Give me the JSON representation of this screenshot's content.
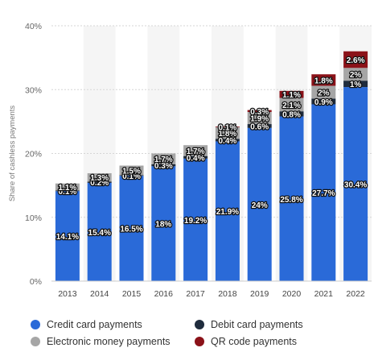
{
  "chart_data": {
    "type": "bar",
    "stacked": true,
    "categories": [
      "2013",
      "2014",
      "2015",
      "2016",
      "2017",
      "2018",
      "2019",
      "2020",
      "2021",
      "2022"
    ],
    "ylabel": "Share of cashless payments",
    "ylim": [
      0,
      40
    ],
    "yticks": [
      "0%",
      "10%",
      "20%",
      "30%",
      "40%"
    ],
    "grid": true,
    "legend_position": "bottom",
    "series": [
      {
        "name": "Credit card payments",
        "color": "#2a6ad8",
        "values": [
          14.1,
          15.4,
          16.5,
          18,
          19.2,
          21.9,
          24,
          25.8,
          27.7,
          30.4
        ],
        "labels": [
          "14.1%",
          "15.4%",
          "16.5%",
          "18%",
          "19.2%",
          "21.9%",
          "24%",
          "25.8%",
          "27.7%",
          "30.4%"
        ]
      },
      {
        "name": "Debit card payments",
        "color": "#1f2c3d",
        "values": [
          0.1,
          0.2,
          0.1,
          0.3,
          0.4,
          0.4,
          0.6,
          0.8,
          0.9,
          1
        ],
        "labels": [
          "0.1%",
          "0.2%",
          "0.1%",
          "0.3%",
          "0.4%",
          "0.4%",
          "0.6%",
          "0.8%",
          "0.9%",
          "1%"
        ]
      },
      {
        "name": "Electronic money payments",
        "color": "#a6a6a6",
        "values": [
          1.1,
          1.3,
          1.5,
          1.7,
          1.7,
          1.8,
          1.9,
          2.1,
          2,
          2
        ],
        "labels": [
          "1.1%",
          "1.3%",
          "1.5%",
          "1.7%",
          "1.7%",
          "1.8%",
          "1.9%",
          "2.1%",
          "2%",
          "2%"
        ]
      },
      {
        "name": "QR code payments",
        "color": "#8b1219",
        "values": [
          0,
          0,
          0,
          0,
          0,
          0.1,
          0.3,
          1.1,
          1.8,
          2.6
        ],
        "labels": [
          "",
          "",
          "",
          "",
          "",
          "0.1%",
          "0.3%",
          "1.1%",
          "1.8%",
          "2.6%"
        ]
      }
    ]
  },
  "legend": [
    {
      "label": "Credit card payments",
      "color": "#2a6ad8"
    },
    {
      "label": "Debit card payments",
      "color": "#1f2c3d"
    },
    {
      "label": "Electronic money payments",
      "color": "#a6a6a6"
    },
    {
      "label": "QR code payments",
      "color": "#8b1219"
    }
  ]
}
